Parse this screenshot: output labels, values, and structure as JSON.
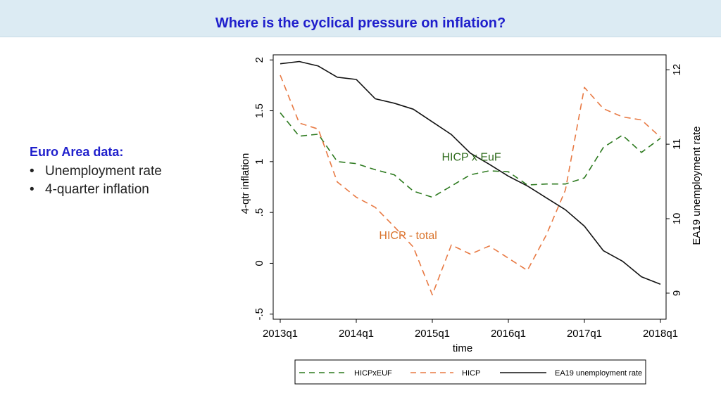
{
  "slide": {
    "title": "Where is the cyclical pressure on inflation?",
    "sidebar": {
      "heading": "Euro Area data:",
      "bullets": [
        "Unemployment rate",
        "4-quarter inflation"
      ]
    }
  },
  "colors": {
    "title": "#1f1fcc",
    "title_bar": "#dcebf3",
    "hicpxeuf": "#2d7a1f",
    "hicp": "#e87a44",
    "unemp": "#111111",
    "label_euf": "#2d6a1a",
    "label_hicp": "#d9732b"
  },
  "chart_data": {
    "type": "line",
    "xlabel": "time",
    "ylabel": "4-qtr inflation",
    "y2label": "EA19 unemployment rate",
    "xlim": [
      0,
      20
    ],
    "ylim": [
      -0.55,
      2.05
    ],
    "y2lim": [
      8.65,
      12.2
    ],
    "x_ticks": [
      0,
      4,
      8,
      12,
      16,
      20
    ],
    "x_tick_labels": [
      "2013q1",
      "2014q1",
      "2015q1",
      "2016q1",
      "2017q1",
      "2018q1"
    ],
    "y_ticks": [
      -0.5,
      0,
      0.5,
      1,
      1.5,
      2
    ],
    "y_tick_labels": [
      "-.5",
      "0",
      ".5",
      "1",
      "1.5",
      "2"
    ],
    "y2_ticks": [
      9,
      10,
      11,
      12
    ],
    "y2_tick_labels": [
      "9",
      "10",
      "11",
      "12"
    ],
    "annotations": [
      {
        "text": "HICP x EuF",
        "x": 8.5,
        "y": 1.01,
        "series": "HICPxEUF"
      },
      {
        "text": "HICP - total",
        "x": 5.2,
        "y": 0.24,
        "series": "HICP"
      }
    ],
    "series": [
      {
        "name": "HICPxEUF",
        "axis": "left",
        "style": "dashed",
        "values": [
          1.48,
          1.25,
          1.27,
          1.0,
          0.98,
          0.92,
          0.87,
          0.71,
          0.65,
          0.76,
          0.87,
          0.91,
          0.9,
          0.77,
          0.78,
          0.78,
          0.84,
          1.14,
          1.26,
          1.09,
          1.23
        ]
      },
      {
        "name": "HICP",
        "axis": "left",
        "style": "dashed",
        "values": [
          1.85,
          1.38,
          1.32,
          0.8,
          0.65,
          0.55,
          0.36,
          0.16,
          -0.31,
          0.18,
          0.09,
          0.17,
          0.05,
          -0.07,
          0.28,
          0.72,
          1.73,
          1.52,
          1.44,
          1.41,
          1.24
        ]
      },
      {
        "name": "EA19 unemployment rate",
        "axis": "right",
        "style": "solid",
        "values": [
          12.08,
          12.11,
          12.05,
          11.9,
          11.87,
          11.61,
          11.55,
          11.47,
          11.3,
          11.13,
          10.88,
          10.73,
          10.57,
          10.44,
          10.28,
          10.12,
          9.9,
          9.57,
          9.43,
          9.22,
          9.12
        ]
      }
    ],
    "legend": {
      "position": "bottom",
      "entries": [
        "HICPxEUF",
        "HICP",
        "EA19 unemployment rate"
      ]
    }
  }
}
